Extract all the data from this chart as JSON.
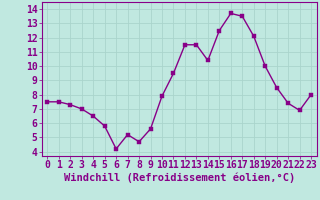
{
  "x": [
    0,
    1,
    2,
    3,
    4,
    5,
    6,
    7,
    8,
    9,
    10,
    11,
    12,
    13,
    14,
    15,
    16,
    17,
    18,
    19,
    20,
    21,
    22,
    23
  ],
  "y": [
    7.5,
    7.5,
    7.3,
    7.0,
    6.5,
    5.8,
    4.2,
    5.2,
    4.7,
    5.6,
    7.9,
    9.5,
    11.5,
    11.5,
    10.4,
    12.5,
    13.7,
    13.5,
    12.1,
    10.0,
    8.5,
    7.4,
    6.9,
    8.0
  ],
  "line_color": "#880088",
  "marker_color": "#880088",
  "bg_color": "#c0e8e0",
  "grid_color": "#aad4cc",
  "xlabel": "Windchill (Refroidissement éolien,°C)",
  "xlabel_color": "#880088",
  "ylabel_ticks": [
    4,
    5,
    6,
    7,
    8,
    9,
    10,
    11,
    12,
    13,
    14
  ],
  "xtick_labels": [
    "0",
    "1",
    "2",
    "3",
    "4",
    "5",
    "6",
    "7",
    "8",
    "9",
    "10",
    "11",
    "12",
    "13",
    "14",
    "15",
    "16",
    "17",
    "18",
    "19",
    "20",
    "21",
    "22",
    "23"
  ],
  "ylim": [
    3.7,
    14.5
  ],
  "xlim": [
    -0.5,
    23.5
  ],
  "tick_color": "#880088",
  "font_size_label": 7.5,
  "font_size_tick": 7,
  "line_width": 1.0,
  "marker_size": 2.5
}
